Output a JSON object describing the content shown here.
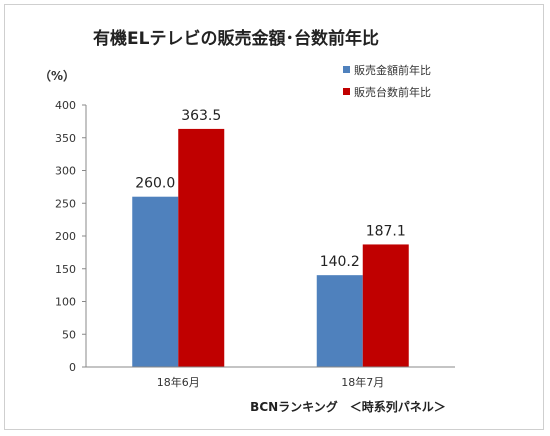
{
  "chart_data": {
    "type": "bar",
    "title": "有機ELテレビの販売金額･台数前年比",
    "ylabel": "（%）",
    "xlabel": "",
    "categories": [
      "18年6月",
      "18年7月"
    ],
    "series": [
      {
        "name": "販売金額前年比",
        "color": "#4f81bd",
        "values": [
          260.0,
          140.2
        ],
        "labels": [
          "260.0",
          "140.2"
        ]
      },
      {
        "name": "販売台数前年比",
        "color": "#c00000",
        "values": [
          363.5,
          187.1
        ],
        "labels": [
          "363.5",
          "187.1"
        ]
      }
    ],
    "ylim": [
      0,
      400
    ],
    "yticks": [
      0,
      50,
      100,
      150,
      200,
      250,
      300,
      350,
      400
    ],
    "grid": false,
    "legend": "top-right",
    "source_note": "BCNランキング　＜時系列パネル＞"
  }
}
